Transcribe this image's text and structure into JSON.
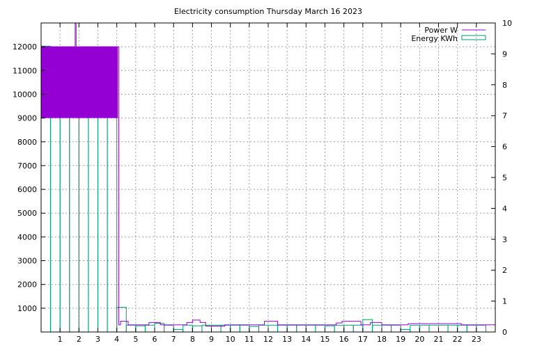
{
  "colors": {
    "power": "#9400d3",
    "energy": "#009e73",
    "grid": "#a0a0a0"
  },
  "chart_data": {
    "type": "bar",
    "title": "Electricity consumption Thursday March 16 2023",
    "xlabel": "",
    "ylabel": "",
    "xlim": [
      0,
      24
    ],
    "ylim": [
      0,
      13000
    ],
    "y2lim": [
      0,
      10
    ],
    "grid": true,
    "legend_position": "top-right",
    "x_ticks": [
      1,
      2,
      3,
      4,
      5,
      6,
      7,
      8,
      9,
      10,
      11,
      12,
      13,
      14,
      15,
      16,
      17,
      18,
      19,
      20,
      21,
      22,
      23
    ],
    "y_ticks": [
      1000,
      2000,
      3000,
      4000,
      5000,
      6000,
      7000,
      8000,
      9000,
      10000,
      11000,
      12000
    ],
    "y2_ticks": [
      0,
      1,
      2,
      3,
      4,
      5,
      6,
      7,
      8,
      9,
      10
    ],
    "series": [
      {
        "name": "Power W",
        "axis": "left",
        "style": "steps",
        "band": {
          "x_start": 0,
          "x_end": 4.05,
          "low": 9000,
          "high": 12000
        },
        "points": [
          [
            0,
            12000
          ],
          [
            0.5,
            12000
          ],
          [
            1,
            12000
          ],
          [
            1.5,
            12000
          ],
          [
            1.8,
            13000
          ],
          [
            1.85,
            12000
          ],
          [
            2.5,
            12000
          ],
          [
            3,
            12000
          ],
          [
            3.5,
            12000
          ],
          [
            4.05,
            12000
          ],
          [
            4.1,
            300
          ],
          [
            4.2,
            450
          ],
          [
            4.6,
            300
          ],
          [
            5.5,
            300
          ],
          [
            5.7,
            400
          ],
          [
            6.3,
            300
          ],
          [
            6.8,
            300
          ],
          [
            7.4,
            300
          ],
          [
            7.7,
            400
          ],
          [
            8.0,
            500
          ],
          [
            8.4,
            400
          ],
          [
            8.7,
            250
          ],
          [
            9.7,
            300
          ],
          [
            11.5,
            300
          ],
          [
            11.8,
            450
          ],
          [
            12.5,
            300
          ],
          [
            13.6,
            300
          ],
          [
            15.5,
            300
          ],
          [
            15.6,
            380
          ],
          [
            15.9,
            450
          ],
          [
            16.8,
            450
          ],
          [
            16.9,
            300
          ],
          [
            17.2,
            300
          ],
          [
            17.4,
            400
          ],
          [
            17.8,
            400
          ],
          [
            18,
            300
          ],
          [
            19.2,
            300
          ],
          [
            19.4,
            350
          ],
          [
            21.2,
            350
          ],
          [
            21.8,
            350
          ],
          [
            22.2,
            300
          ],
          [
            23.2,
            300
          ],
          [
            24,
            300
          ]
        ]
      },
      {
        "name": "Energy KWh",
        "axis": "right",
        "style": "boxes",
        "x": [
          0,
          0.5,
          1,
          1.5,
          2,
          2.5,
          3,
          3.5,
          4,
          4.5,
          5,
          5.5,
          6,
          6.5,
          7,
          7.5,
          8,
          8.5,
          9,
          9.5,
          10,
          10.5,
          11,
          11.5,
          12,
          12.5,
          13,
          13.5,
          14,
          14.5,
          15,
          15.5,
          16,
          16.5,
          17,
          17.5,
          18,
          18.5,
          19,
          19.5,
          20,
          20.5,
          21,
          21.5,
          22,
          22.5,
          23
        ],
        "values": [
          9.25,
          9.2,
          9.2,
          9.2,
          9.2,
          9.2,
          9.2,
          9.2,
          0.8,
          0.22,
          0.2,
          0.22,
          0.28,
          0.22,
          0.08,
          0.22,
          0.2,
          0.22,
          0.22,
          0.22,
          0.22,
          0.22,
          0.18,
          0.22,
          0.22,
          0.22,
          0.22,
          0.22,
          0.22,
          0.22,
          0.2,
          0.22,
          0.22,
          0.22,
          0.4,
          0.22,
          0.22,
          0.22,
          0.08,
          0.22,
          0.22,
          0.22,
          0.22,
          0.22,
          0.22,
          0.22,
          0.22
        ]
      }
    ]
  }
}
